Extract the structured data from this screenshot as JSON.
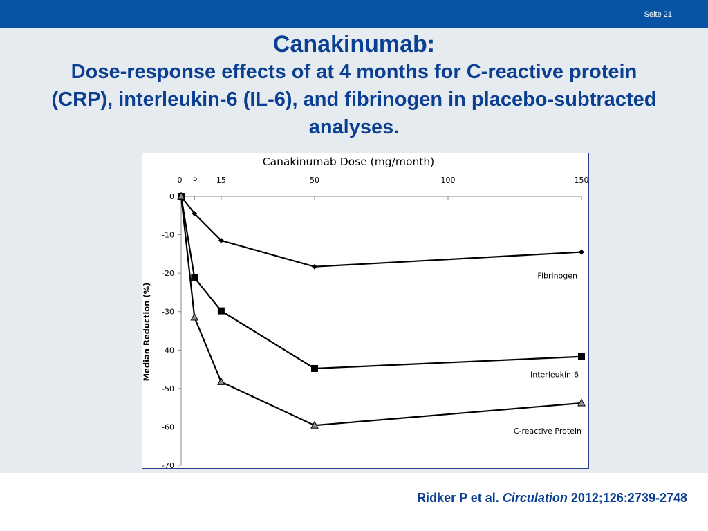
{
  "slide": {
    "number_label": "Seite 21"
  },
  "title": {
    "main": "Canakinumab:",
    "subtitle": "Dose-response effects of at 4 months for C-reactive protein (CRP), interleukin-6 (IL-6), and fibrinogen in placebo-subtracted analyses."
  },
  "citation": {
    "authors": "Ridker P et al.",
    "journal": "Circulation",
    "ref": "2012;126:2739-2748"
  },
  "colors": {
    "brand_bar": "#0654a3",
    "title_text": "#0b3f92",
    "background": "#e5ebee"
  },
  "chart_data": {
    "type": "line",
    "title": "Canakinumab Dose (mg/month)",
    "xlabel": "Canakinumab Dose (mg/month)",
    "ylabel": "Median Reduction (%)",
    "x_axis_position": "top",
    "x_ticks": [
      0,
      5,
      15,
      50,
      100,
      150
    ],
    "xlim": [
      0,
      150
    ],
    "y_ticks": [
      0,
      -10,
      -20,
      -30,
      -40,
      -50,
      -60,
      -70
    ],
    "ylim": [
      -70,
      0
    ],
    "grid": false,
    "series": [
      {
        "name": "Fibrinogen",
        "marker": "diamond",
        "label_position": "right",
        "x": [
          0,
          5,
          15,
          50,
          150
        ],
        "y": [
          0,
          -4.5,
          -11.5,
          -18.3,
          -14.5
        ]
      },
      {
        "name": "Interleukin-6",
        "marker": "square",
        "label_position": "right",
        "x": [
          0,
          5,
          15,
          50,
          150
        ],
        "y": [
          0,
          -21.2,
          -29.8,
          -44.8,
          -41.7
        ]
      },
      {
        "name": "C-reactive Protein",
        "marker": "triangle",
        "label_position": "right",
        "x": [
          0,
          5,
          15,
          50,
          150
        ],
        "y": [
          0,
          -31.5,
          -48.3,
          -59.6,
          -53.8
        ]
      }
    ]
  }
}
